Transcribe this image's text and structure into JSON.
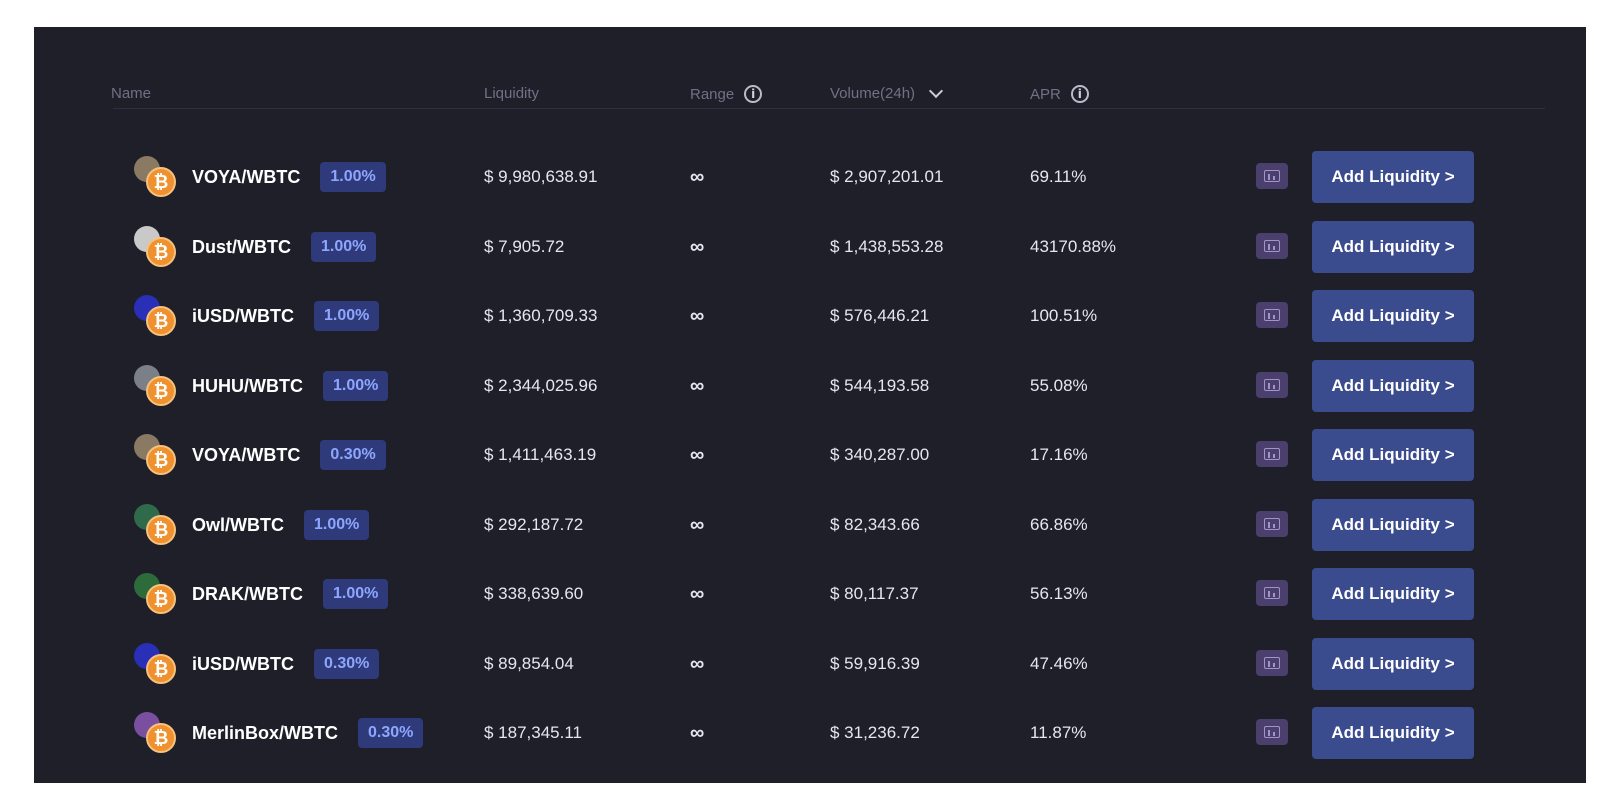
{
  "header": {
    "name": "Name",
    "liquidity": "Liquidity",
    "range": "Range",
    "volume": "Volume(24h)",
    "apr": "APR"
  },
  "icons": {
    "info": "info-icon",
    "chevron": "chevron-down-icon",
    "chart": "chart-icon"
  },
  "colors": {
    "panel_bg": "#1e1f29",
    "fee_badge_bg": "#2e3a7a",
    "fee_badge_text": "#8fa6ff",
    "button_bg": "#3b4c8e",
    "chart_button_bg": "#4b3f6e",
    "wbtc_orange": "#f0912f"
  },
  "wbtc_symbol": "₿",
  "rows": [
    {
      "pair": "VOYA/WBTC",
      "fee": "1.00%",
      "liquidity": "$ 9,980,638.91",
      "range": "∞",
      "volume": "$ 2,907,201.01",
      "apr": "69.11%",
      "action": "Add Liquidity >",
      "token_icon": "voya-token-icon"
    },
    {
      "pair": "Dust/WBTC",
      "fee": "1.00%",
      "liquidity": "$ 7,905.72",
      "range": "∞",
      "volume": "$ 1,438,553.28",
      "apr": "43170.88%",
      "action": "Add Liquidity >",
      "token_icon": "dust-token-icon"
    },
    {
      "pair": "iUSD/WBTC",
      "fee": "1.00%",
      "liquidity": "$ 1,360,709.33",
      "range": "∞",
      "volume": "$ 576,446.21",
      "apr": "100.51%",
      "action": "Add Liquidity >",
      "token_icon": "iusd-token-icon"
    },
    {
      "pair": "HUHU/WBTC",
      "fee": "1.00%",
      "liquidity": "$ 2,344,025.96",
      "range": "∞",
      "volume": "$ 544,193.58",
      "apr": "55.08%",
      "action": "Add Liquidity >",
      "token_icon": "huhu-token-icon"
    },
    {
      "pair": "VOYA/WBTC",
      "fee": "0.30%",
      "liquidity": "$ 1,411,463.19",
      "range": "∞",
      "volume": "$ 340,287.00",
      "apr": "17.16%",
      "action": "Add Liquidity >",
      "token_icon": "voya-token-icon"
    },
    {
      "pair": "Owl/WBTC",
      "fee": "1.00%",
      "liquidity": "$ 292,187.72",
      "range": "∞",
      "volume": "$ 82,343.66",
      "apr": "66.86%",
      "action": "Add Liquidity >",
      "token_icon": "owl-token-icon"
    },
    {
      "pair": "DRAK/WBTC",
      "fee": "1.00%",
      "liquidity": "$ 338,639.60",
      "range": "∞",
      "volume": "$ 80,117.37",
      "apr": "56.13%",
      "action": "Add Liquidity >",
      "token_icon": "drak-token-icon"
    },
    {
      "pair": "iUSD/WBTC",
      "fee": "0.30%",
      "liquidity": "$ 89,854.04",
      "range": "∞",
      "volume": "$ 59,916.39",
      "apr": "47.46%",
      "action": "Add Liquidity >",
      "token_icon": "iusd-token-icon"
    },
    {
      "pair": "MerlinBox/WBTC",
      "fee": "0.30%",
      "liquidity": "$ 187,345.11",
      "range": "∞",
      "volume": "$ 31,236.72",
      "apr": "11.87%",
      "action": "Add Liquidity >",
      "token_icon": "merlinbox-token-icon"
    }
  ],
  "token_colors": {
    "voya-token-icon": "#8a7a63",
    "dust-token-icon": "#c9c9c9",
    "iusd-token-icon": "#2a2fb8",
    "huhu-token-icon": "#7b7f87",
    "owl-token-icon": "#2f6b4a",
    "drak-token-icon": "#2e6b3a",
    "merlinbox-token-icon": "#7a4fa0"
  }
}
